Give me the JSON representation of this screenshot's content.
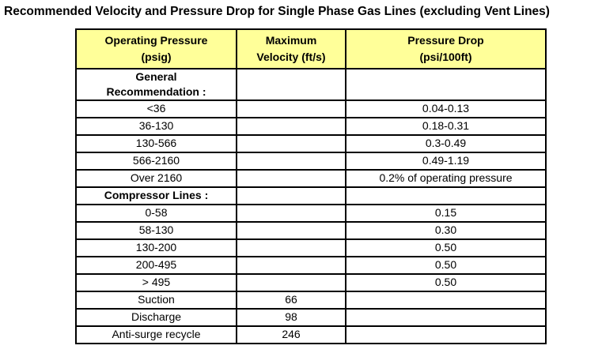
{
  "title": "Recommended Velocity and Pressure Drop for Single Phase Gas Lines (excluding Vent Lines)",
  "colors": {
    "header_bg": "#FFFF99",
    "border": "#000000",
    "text": "#000000",
    "page_bg": "#FFFFFF"
  },
  "table": {
    "header": {
      "col1": "Operating Pressure\n(psig)",
      "col2": "Maximum\nVelocity (ft/s)",
      "col3": "Pressure Drop\n(psi/100ft)"
    },
    "rows": [
      {
        "pressure": "General\nRecommendation :",
        "velocity": "",
        "drop": "",
        "bold": true
      },
      {
        "pressure": "<36",
        "velocity": "",
        "drop": "0.04-0.13",
        "bold": false
      },
      {
        "pressure": "36-130",
        "velocity": "",
        "drop": "0.18-0.31",
        "bold": false
      },
      {
        "pressure": "130-566",
        "velocity": "",
        "drop": "0.3-0.49",
        "bold": false
      },
      {
        "pressure": "566-2160",
        "velocity": "",
        "drop": "0.49-1.19",
        "bold": false
      },
      {
        "pressure": "Over 2160",
        "velocity": "",
        "drop": "0.2% of operating pressure",
        "bold": false
      },
      {
        "pressure": "Compressor Lines :",
        "velocity": "",
        "drop": "",
        "bold": true
      },
      {
        "pressure": "0-58",
        "velocity": "",
        "drop": "0.15",
        "bold": false
      },
      {
        "pressure": "58-130",
        "velocity": "",
        "drop": "0.30",
        "bold": false
      },
      {
        "pressure": "130-200",
        "velocity": "",
        "drop": "0.50",
        "bold": false
      },
      {
        "pressure": "200-495",
        "velocity": "",
        "drop": "0.50",
        "bold": false
      },
      {
        "pressure": "> 495",
        "velocity": "",
        "drop": "0.50",
        "bold": false
      },
      {
        "pressure": "Suction",
        "velocity": "66",
        "drop": "",
        "bold": false
      },
      {
        "pressure": "Discharge",
        "velocity": "98",
        "drop": "",
        "bold": false
      },
      {
        "pressure": "Anti-surge recycle",
        "velocity": "246",
        "drop": "",
        "bold": false
      }
    ]
  }
}
